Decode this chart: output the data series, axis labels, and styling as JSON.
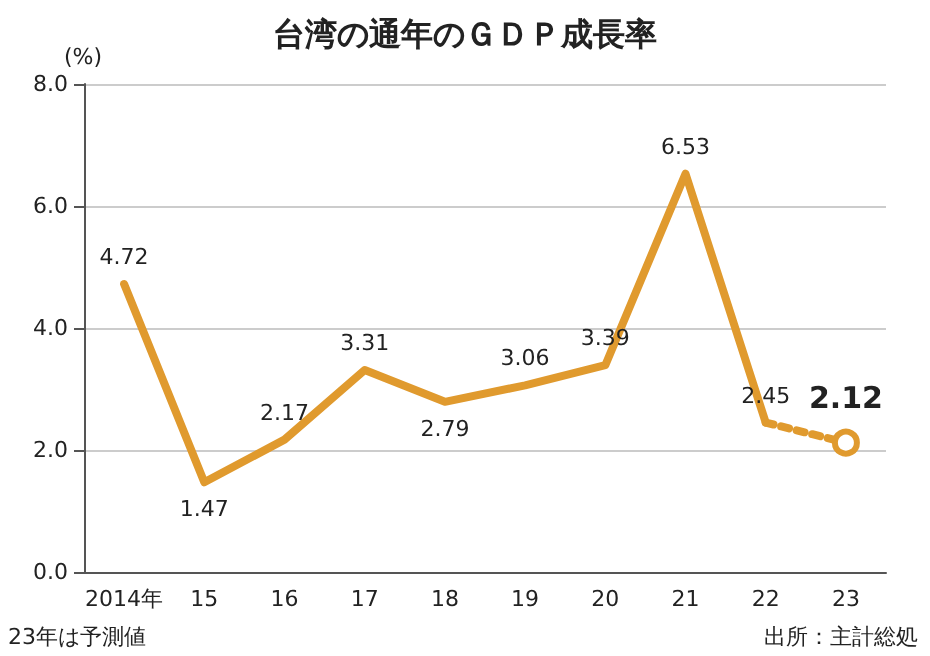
{
  "chart_data": {
    "type": "line",
    "title": "台湾の通年のＧＤＰ成長率",
    "ylabel": "(%)",
    "categories": [
      "2014年",
      "15",
      "16",
      "17",
      "18",
      "19",
      "20",
      "21",
      "22",
      "23"
    ],
    "series": [
      {
        "color": "#e09a2e",
        "values": [
          4.72,
          1.47,
          2.17,
          3.31,
          2.79,
          3.06,
          3.39,
          6.53,
          2.45,
          null
        ],
        "value_labels": [
          "4.72",
          "1.47",
          "2.17",
          "3.31",
          "2.79",
          "3.06",
          "3.39",
          "6.53",
          "2.45",
          null
        ],
        "marker": "none",
        "line_style": "solid"
      },
      {
        "color": "#e09a2e",
        "values": [
          null,
          null,
          null,
          null,
          null,
          null,
          null,
          null,
          2.45,
          2.12
        ],
        "value_labels": [
          null,
          null,
          null,
          null,
          null,
          null,
          null,
          null,
          null,
          "2.12"
        ],
        "marker": "circle",
        "line_style": "dotted"
      }
    ],
    "ylim": [
      0,
      8
    ],
    "yticks": [
      {
        "value": 0,
        "label": "0.0"
      },
      {
        "value": 2,
        "label": "2.0"
      },
      {
        "value": 4,
        "label": "4.0"
      },
      {
        "value": 6,
        "label": "6.0"
      },
      {
        "value": 8,
        "label": "8.0"
      }
    ],
    "grid": "y",
    "annotations": [
      "23年は予測値",
      "出所：主計総処"
    ]
  }
}
